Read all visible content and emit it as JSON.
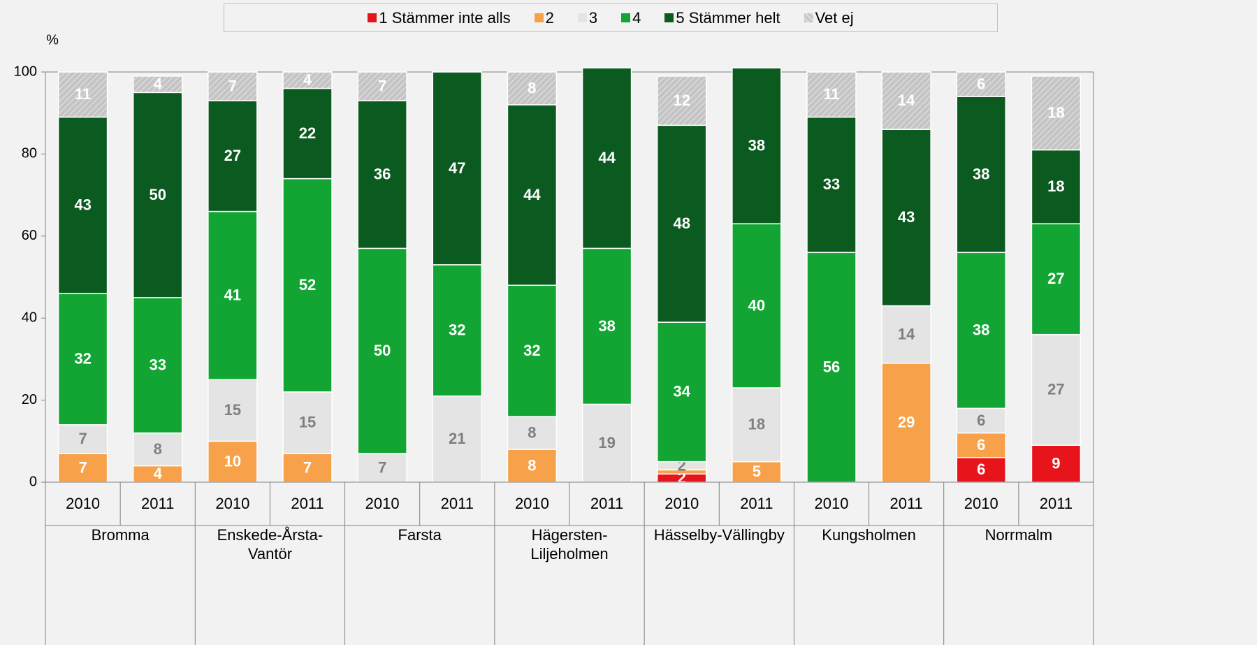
{
  "chart_data": {
    "type": "stacked_bar",
    "y_unit_label": "%",
    "categories": [
      "2010",
      "2011",
      "2010",
      "2011",
      "2010",
      "2011",
      "2010",
      "2011",
      "2010",
      "2011",
      "2010",
      "2011",
      "2010",
      "2011"
    ],
    "groups": [
      "Bromma",
      "Enskede-Årsta-Vantör",
      "Farsta",
      "Hägersten-Liljeholmen",
      "Hässelby-Vällingby",
      "Kungsholmen",
      "Norrmalm"
    ],
    "ylim": [
      0,
      100
    ],
    "yticks": [
      0,
      20,
      40,
      60,
      80,
      100
    ],
    "series": [
      {
        "name": "1 Stämmer inte alls",
        "color": "#e8141c",
        "label_color": "#ffffff",
        "values": [
          null,
          null,
          null,
          null,
          null,
          null,
          null,
          null,
          2,
          null,
          null,
          null,
          6,
          9
        ]
      },
      {
        "name": "2",
        "color": "#f7a24a",
        "label_color": "#ffffff",
        "values": [
          7,
          4,
          10,
          7,
          null,
          null,
          8,
          null,
          1,
          5,
          null,
          29,
          6,
          null
        ]
      },
      {
        "name": "3",
        "color": "#e4e4e4",
        "label_color": "#7f7f7f",
        "values": [
          7,
          8,
          15,
          15,
          7,
          21,
          8,
          19,
          2,
          18,
          null,
          14,
          6,
          27
        ]
      },
      {
        "name": "4",
        "color": "#12a533",
        "label_color": "#ffffff",
        "values": [
          32,
          33,
          41,
          52,
          50,
          32,
          32,
          38,
          34,
          40,
          56,
          null,
          38,
          27
        ]
      },
      {
        "name": "5 Stämmer helt",
        "color": "#0b5a20",
        "label_color": "#ffffff",
        "values": [
          43,
          50,
          27,
          22,
          36,
          47,
          44,
          44,
          48,
          38,
          33,
          43,
          38,
          18
        ]
      },
      {
        "name": "Vet ej",
        "color": "#c4c4c4",
        "label_color": "#ffffff",
        "hatched": true,
        "values": [
          11,
          4,
          7,
          4,
          7,
          null,
          8,
          null,
          12,
          null,
          11,
          14,
          6,
          18
        ]
      }
    ]
  }
}
